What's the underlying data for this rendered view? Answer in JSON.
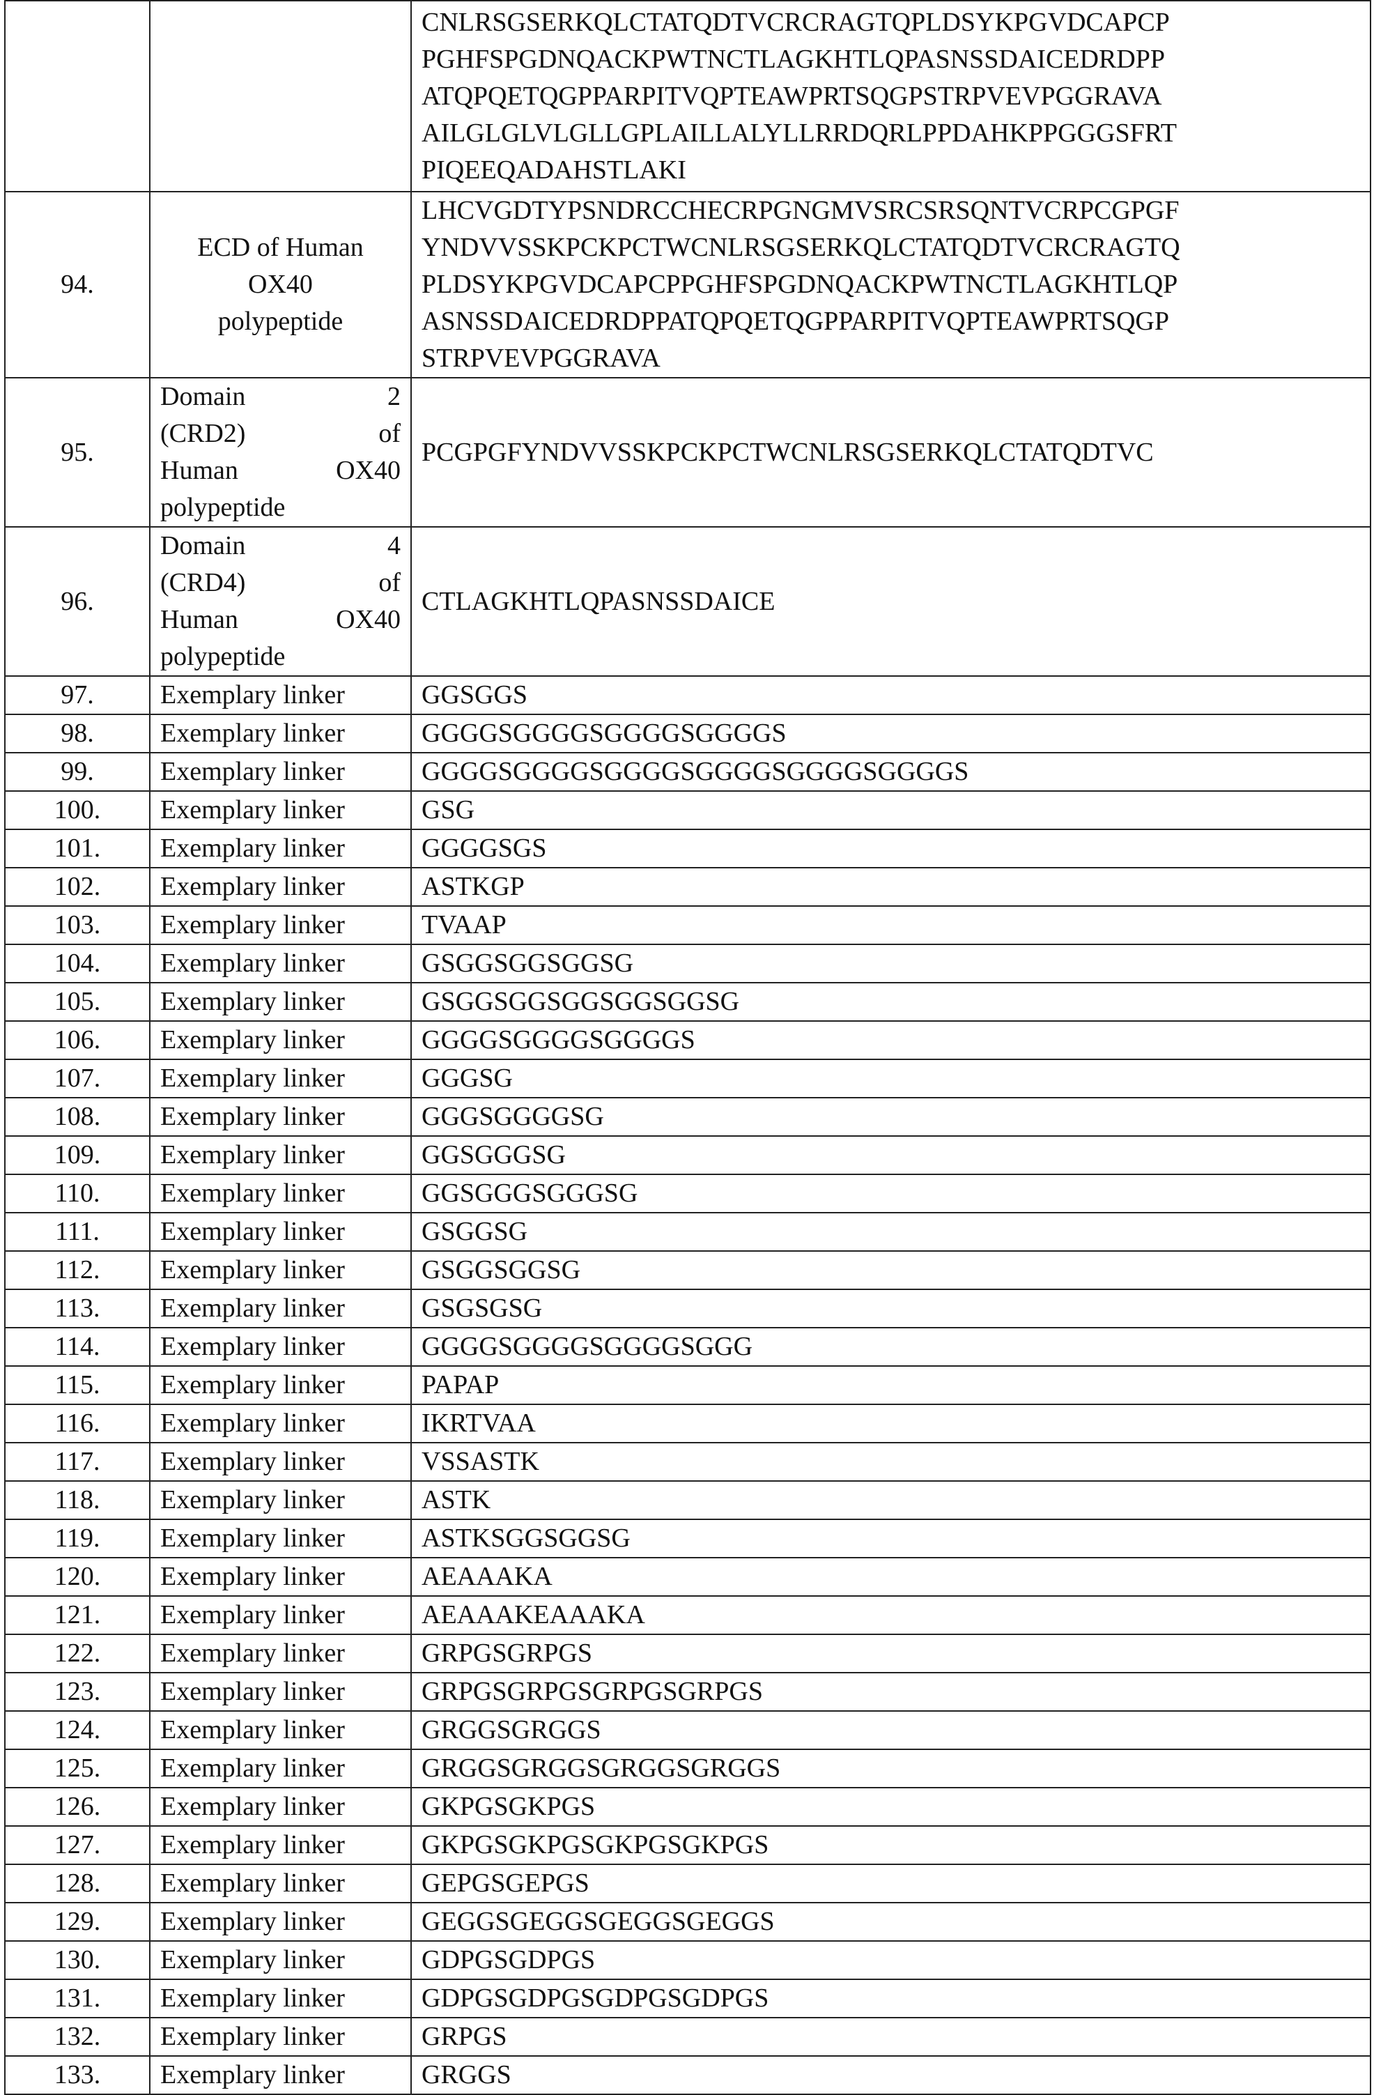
{
  "table": {
    "rows": [
      [
        "",
        "",
        [
          "CNLRSGSERKQLCTATQDTVCRCRAGTQPLDSYKPGVDCAPCP",
          "PGHFSPGDNQACKPWTNCTLAGKHTLQPASNSSDAICEDRDPP",
          "ATQPQETQGPPARPITVQPTEAWPRTSQGPSTRPVEVPGGRAVA",
          "AILGLGLVLGLLGPLAILLALYLLRRDQRLPPDAHKPPGGGSFRT",
          "PIQEEQADAHSTLAKI"
        ]
      ],
      [
        "94.",
        [
          "ECD of Human",
          "OX40",
          "polypeptide"
        ],
        [
          "LHCVGDTYPSNDRCCHECRPGNGMVSRCSRSQNTVCRPCGPGF",
          "YNDVVSSKPCKPCTWCNLRSGSERKQLCTATQDTVCRCRAGTQ",
          "PLDSYKPGVDCAPCPPGHFSPGDNQACKPWTNCTLAGKHTLQP",
          "ASNSSDAICEDRDPPATQPQETQGPPARPITVQPTEAWPRTSQGP",
          "STRPVEVPGGRAVA"
        ]
      ],
      [
        "95.",
        [
          "Domain 2",
          "(CRD2) of",
          "Human OX40",
          "polypeptide"
        ],
        "PCGPGFYNDVVSSKPCKPCTWCNLRSGSERKQLCTATQDTVC"
      ],
      [
        "96.",
        [
          "Domain 4",
          "(CRD4) of",
          "Human OX40",
          "polypeptide"
        ],
        "CTLAGKHTLQPASNSSDAICE"
      ],
      [
        "97.",
        "Exemplary linker",
        "GGSGGS"
      ],
      [
        "98.",
        "Exemplary linker",
        "GGGGSGGGGSGGGGSGGGGS"
      ],
      [
        "99.",
        "Exemplary linker",
        "GGGGSGGGGSGGGGSGGGGSGGGGSGGGGS"
      ],
      [
        "100.",
        "Exemplary linker",
        "GSG"
      ],
      [
        "101.",
        "Exemplary linker",
        "GGGGSGS"
      ],
      [
        "102.",
        "Exemplary linker",
        "ASTKGP"
      ],
      [
        "103.",
        "Exemplary linker",
        "TVAAP"
      ],
      [
        "104.",
        "Exemplary linker",
        "GSGGSGGSGGSG"
      ],
      [
        "105.",
        "Exemplary linker",
        "GSGGSGGSGGSGGSGGSG"
      ],
      [
        "106.",
        "Exemplary linker",
        "GGGGSGGGGSGGGGS"
      ],
      [
        "107.",
        "Exemplary linker",
        "GGGSG"
      ],
      [
        "108.",
        "Exemplary linker",
        "GGGSGGGGSG"
      ],
      [
        "109.",
        "Exemplary linker",
        "GGSGGGSG"
      ],
      [
        "110.",
        "Exemplary linker",
        "GGSGGGSGGGSG"
      ],
      [
        "111.",
        "Exemplary linker",
        "GSGGSG"
      ],
      [
        "112.",
        "Exemplary linker",
        "GSGGSGGSG"
      ],
      [
        "113.",
        "Exemplary linker",
        "GSGSGSG"
      ],
      [
        "114.",
        "Exemplary linker",
        "GGGGSGGGGSGGGGSGGG"
      ],
      [
        "115.",
        "Exemplary linker",
        "PAPAP"
      ],
      [
        "116.",
        "Exemplary linker",
        "IKRTVAA"
      ],
      [
        "117.",
        "Exemplary linker",
        "VSSASTK"
      ],
      [
        "118.",
        "Exemplary linker",
        "ASTK"
      ],
      [
        "119.",
        "Exemplary linker",
        "ASTKSGGSGGSG"
      ],
      [
        "120.",
        "Exemplary linker",
        "AEAAAKA"
      ],
      [
        "121.",
        "Exemplary linker",
        "AEAAAKEAAAKA"
      ],
      [
        "122.",
        "Exemplary linker",
        "GRPGSGRPGS"
      ],
      [
        "123.",
        "Exemplary linker",
        "GRPGSGRPGSGRPGSGRPGS"
      ],
      [
        "124.",
        "Exemplary linker",
        "GRGGSGRGGS"
      ],
      [
        "125.",
        "Exemplary linker",
        "GRGGSGRGGSGRGGSGRGGS"
      ],
      [
        "126.",
        "Exemplary linker",
        "GKPGSGKPGS"
      ],
      [
        "127.",
        "Exemplary linker",
        "GKPGSGKPGSGKPGSGKPGS"
      ],
      [
        "128.",
        "Exemplary linker",
        "GEPGSGEPGS"
      ],
      [
        "129.",
        "Exemplary linker",
        "GEGGSGEGGSGEGGSGEGGS"
      ],
      [
        "130.",
        "Exemplary linker",
        "GDPGSGDPGS"
      ],
      [
        "131.",
        "Exemplary linker",
        "GDPGSGDPGSGDPGSGDPGS"
      ],
      [
        "132.",
        "Exemplary linker",
        "GRPGS"
      ],
      [
        "133.",
        "Exemplary linker",
        "GRGGS"
      ]
    ]
  }
}
